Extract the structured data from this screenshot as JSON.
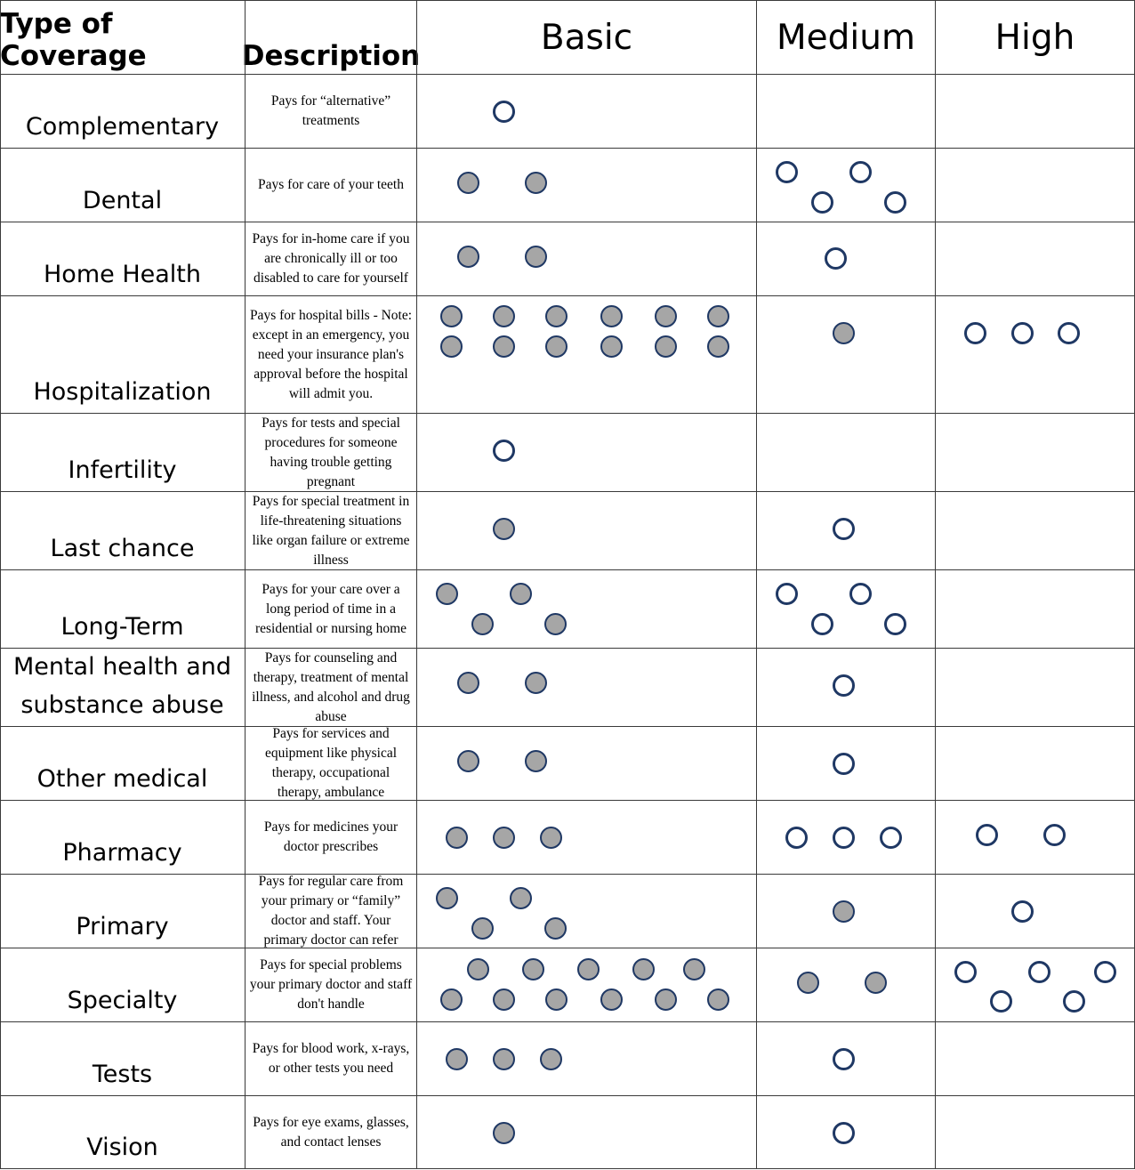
{
  "header": {
    "type_label": "Type of Coverage",
    "description_label": "Description",
    "levels": [
      "Basic",
      "Medium",
      "High"
    ]
  },
  "legend_colors": {
    "filled": "#a6a6a6",
    "outline": "#1f3864"
  },
  "rows": [
    {
      "type": "Complementary",
      "description": "Pays for “alternative” treatments",
      "basic": {
        "filled": 0,
        "open": 1
      },
      "medium": {
        "filled": 0,
        "open": 0
      },
      "high": {
        "filled": 0,
        "open": 0
      }
    },
    {
      "type": "Dental",
      "description": "Pays for care of your teeth",
      "basic": {
        "filled": 2,
        "open": 0
      },
      "medium": {
        "filled": 0,
        "open": 4
      },
      "high": {
        "filled": 0,
        "open": 0
      }
    },
    {
      "type": "Home Health",
      "description": "Pays for in-home care if you are chronically ill or too disabled to care for yourself",
      "basic": {
        "filled": 2,
        "open": 0
      },
      "medium": {
        "filled": 0,
        "open": 1
      },
      "high": {
        "filled": 0,
        "open": 0
      }
    },
    {
      "type": "Hospitalization",
      "description": "Pays for hospital bills - Note: except in an emergency, you need your insurance plan's approval before the hospital will admit you.",
      "basic": {
        "filled": 12,
        "open": 0
      },
      "medium": {
        "filled": 1,
        "open": 0
      },
      "high": {
        "filled": 0,
        "open": 3
      }
    },
    {
      "type": "Infertility",
      "description": "Pays for tests and special procedures for someone having trouble getting pregnant",
      "basic": {
        "filled": 0,
        "open": 1
      },
      "medium": {
        "filled": 0,
        "open": 0
      },
      "high": {
        "filled": 0,
        "open": 0
      }
    },
    {
      "type": "Last chance",
      "description": "Pays for special treatment in life-threatening situations like organ failure or extreme illness",
      "basic": {
        "filled": 1,
        "open": 0
      },
      "medium": {
        "filled": 0,
        "open": 1
      },
      "high": {
        "filled": 0,
        "open": 0
      }
    },
    {
      "type": "Long-Term",
      "description": "Pays for your care over a long period of time in a residential or nursing home",
      "basic": {
        "filled": 4,
        "open": 0
      },
      "medium": {
        "filled": 0,
        "open": 4
      },
      "high": {
        "filled": 0,
        "open": 0
      }
    },
    {
      "type": "Mental health and substance abuse",
      "description": "Pays for counseling and therapy, treatment of mental illness, and alcohol and drug abuse",
      "basic": {
        "filled": 2,
        "open": 0
      },
      "medium": {
        "filled": 0,
        "open": 1
      },
      "high": {
        "filled": 0,
        "open": 0
      }
    },
    {
      "type": "Other medical",
      "description": "Pays for services and equipment like physical therapy, occupational therapy, ambulance",
      "basic": {
        "filled": 2,
        "open": 0
      },
      "medium": {
        "filled": 0,
        "open": 1
      },
      "high": {
        "filled": 0,
        "open": 0
      }
    },
    {
      "type": "Pharmacy",
      "description": "Pays for medicines your doctor prescribes",
      "basic": {
        "filled": 3,
        "open": 0
      },
      "medium": {
        "filled": 0,
        "open": 3
      },
      "high": {
        "filled": 0,
        "open": 2
      }
    },
    {
      "type": "Primary",
      "description": "Pays for regular care from your primary or “family” doctor and staff. Your primary doctor can refer",
      "basic": {
        "filled": 4,
        "open": 0
      },
      "medium": {
        "filled": 1,
        "open": 0
      },
      "high": {
        "filled": 0,
        "open": 1
      }
    },
    {
      "type": "Specialty",
      "description": "Pays for special problems your primary doctor and staff don't handle",
      "basic": {
        "filled": 11,
        "open": 0
      },
      "medium": {
        "filled": 2,
        "open": 0
      },
      "high": {
        "filled": 0,
        "open": 5
      }
    },
    {
      "type": "Tests",
      "description": "Pays for blood work, x-rays, or other tests you need",
      "basic": {
        "filled": 3,
        "open": 0
      },
      "medium": {
        "filled": 0,
        "open": 1
      },
      "high": {
        "filled": 0,
        "open": 0
      }
    },
    {
      "type": "Vision",
      "description": "Pays for eye exams, glasses, and contact lenses",
      "basic": {
        "filled": 1,
        "open": 0
      },
      "medium": {
        "filled": 0,
        "open": 1
      },
      "high": {
        "filled": 0,
        "open": 0
      }
    }
  ]
}
